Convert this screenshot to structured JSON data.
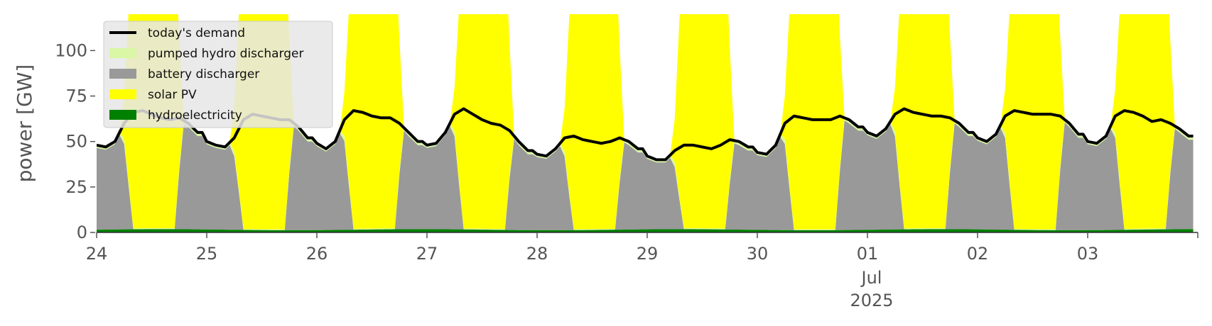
{
  "chart_data": {
    "type": "area",
    "ylabel": "power [GW]",
    "ylim": [
      0,
      120
    ],
    "yticks": [
      0,
      25,
      50,
      75,
      100
    ],
    "x_start": "2025-06-24",
    "x_end": "2025-07-04",
    "xtick_labels": [
      "24",
      "25",
      "26",
      "27",
      "28",
      "29",
      "30",
      "01",
      "02",
      "03"
    ],
    "month_label": "Jul",
    "year_label": "2025",
    "legend_position": "top-left",
    "grid": false,
    "stack_order": [
      "hydroelectricity",
      "battery discharger",
      "pumped hydro discharger",
      "solar PV"
    ],
    "series": [
      {
        "name": "today's demand",
        "color": "#000000",
        "kind": "line",
        "days": [
          [
            48,
            47,
            50,
            60,
            66,
            67,
            65,
            63,
            62,
            63,
            60,
            55
          ],
          [
            50,
            48,
            47,
            52,
            62,
            65,
            64,
            63,
            62,
            62,
            58,
            52
          ],
          [
            49,
            46,
            50,
            62,
            67,
            66,
            64,
            63,
            63,
            60,
            55,
            50
          ],
          [
            48,
            49,
            55,
            65,
            68,
            65,
            62,
            60,
            59,
            56,
            50,
            45
          ],
          [
            43,
            42,
            46,
            52,
            53,
            51,
            50,
            49,
            50,
            52,
            50,
            46
          ],
          [
            42,
            40,
            40,
            45,
            48,
            48,
            47,
            46,
            48,
            51,
            50,
            47
          ],
          [
            44,
            43,
            48,
            60,
            64,
            63,
            62,
            62,
            62,
            64,
            62,
            58
          ],
          [
            55,
            53,
            57,
            65,
            68,
            66,
            65,
            64,
            64,
            63,
            60,
            55
          ],
          [
            52,
            50,
            54,
            64,
            67,
            66,
            65,
            65,
            65,
            64,
            60,
            54
          ],
          [
            50,
            49,
            53,
            64,
            67,
            66,
            64,
            61,
            62,
            60,
            57,
            53
          ]
        ]
      },
      {
        "name": "pumped hydro discharger",
        "color": "#d9f7a5",
        "kind": "area"
      },
      {
        "name": "battery discharger",
        "color": "#999999",
        "kind": "area"
      },
      {
        "name": "solar PV",
        "color": "#ffff00",
        "kind": "area"
      },
      {
        "name": "hydroelectricity",
        "color": "#008000",
        "kind": "area",
        "typical_value": 1.5
      }
    ]
  }
}
